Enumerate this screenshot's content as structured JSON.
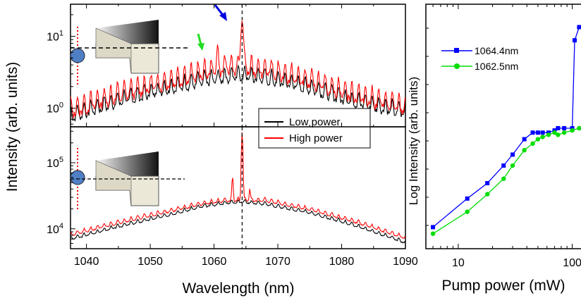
{
  "chart_data": [
    {
      "type": "line",
      "panel": "top",
      "xlim": [
        1037.5,
        1090
      ],
      "y_scale": "log",
      "ylim": [
        0.55,
        28
      ],
      "ytick_labels": [
        "10^0",
        "10^1"
      ],
      "yticks": [
        1,
        10
      ],
      "legend": [
        "Low power",
        "High power"
      ],
      "legend_position": "bottom-right",
      "vline_x": 1064.4,
      "annotations": [
        "blue-arrow at 1064.4",
        "green-arrow at 1060.5"
      ],
      "series": [
        {
          "name": "Low power",
          "color": "#000000",
          "x": [
            1038,
            1045,
            1052,
            1058,
            1062,
            1064.4,
            1068,
            1075,
            1082,
            1089
          ],
          "y": [
            0.7,
            1.1,
            1.6,
            2.1,
            2.4,
            2.6,
            2.3,
            1.7,
            1.1,
            0.8
          ]
        },
        {
          "name": "High power",
          "color": "#ff0000",
          "x": [
            1038,
            1045,
            1052,
            1058,
            1060.5,
            1062,
            1064.4,
            1068,
            1075,
            1082,
            1089
          ],
          "y": [
            0.8,
            1.3,
            1.9,
            2.6,
            6.0,
            3.2,
            16.0,
            2.9,
            2.0,
            1.3,
            0.9
          ]
        }
      ]
    },
    {
      "type": "line",
      "panel": "bottom",
      "xlim": [
        1037.5,
        1090
      ],
      "xticks": [
        1040,
        1050,
        1060,
        1070,
        1080,
        1090
      ],
      "xlabel": "Wavelength (nm)",
      "y_scale": "log",
      "ylim": [
        5000,
        350000
      ],
      "ytick_labels": [
        "10^4",
        "10^5"
      ],
      "yticks": [
        10000,
        100000
      ],
      "vline_x": 1064.4,
      "series": [
        {
          "name": "Low power",
          "color": "#000000",
          "x": [
            1038,
            1045,
            1052,
            1058,
            1062,
            1064.4,
            1068,
            1075,
            1082,
            1090
          ],
          "y": [
            7000,
            10500,
            15000,
            21000,
            24000,
            25000,
            23000,
            17000,
            11000,
            6000
          ]
        },
        {
          "name": "High power",
          "color": "#ff0000",
          "x": [
            1038,
            1045,
            1052,
            1058,
            1062.9,
            1064.4,
            1065.6,
            1068,
            1075,
            1082,
            1090
          ],
          "y": [
            8000,
            12000,
            17000,
            23000,
            60000,
            300000,
            40000,
            26000,
            19000,
            12500,
            7000
          ]
        }
      ]
    },
    {
      "type": "line",
      "panel": "right",
      "x_scale": "log",
      "xlim": [
        5.2,
        130
      ],
      "xticks": [
        10,
        100
      ],
      "xlabel": "Pump power (mW)",
      "ylabel": "Log Intensity (arb. units)",
      "legend_position": "top-left",
      "series": [
        {
          "name": "1064.4nm",
          "color": "#0000ff",
          "marker": "square",
          "x": [
            6,
            12,
            18,
            25,
            30,
            38,
            45,
            50,
            55,
            62,
            70,
            75,
            85,
            100,
            105,
            115,
            125
          ],
          "y": [
            0.05,
            0.18,
            0.25,
            0.33,
            0.38,
            0.45,
            0.48,
            0.48,
            0.48,
            0.48,
            0.49,
            0.5,
            0.5,
            0.5,
            0.9,
            0.96,
            0.97
          ]
        },
        {
          "name": "1062.5nm",
          "color": "#00dd00",
          "marker": "circle",
          "x": [
            6,
            12,
            18,
            25,
            30,
            38,
            45,
            50,
            55,
            62,
            70,
            75,
            85,
            100,
            115,
            125
          ],
          "y": [
            0.02,
            0.12,
            0.2,
            0.27,
            0.33,
            0.4,
            0.43,
            0.45,
            0.46,
            0.47,
            0.48,
            0.47,
            0.48,
            0.49,
            0.5,
            0.51
          ]
        }
      ]
    }
  ],
  "labels": {
    "shared_ylabel": "Intensity (arb. units)"
  }
}
